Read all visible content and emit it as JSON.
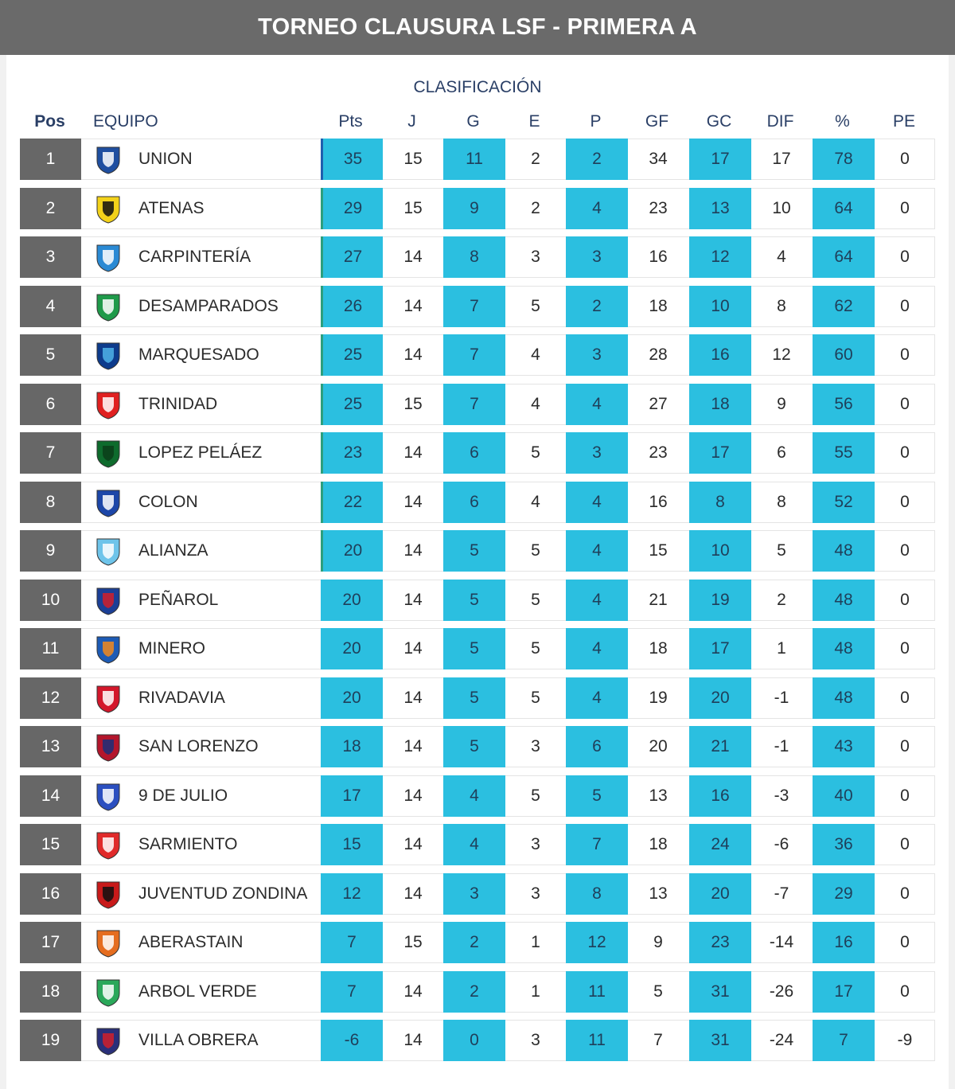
{
  "header": {
    "title": "TORNEO CLAUSURA LSF - PRIMERA A"
  },
  "table": {
    "subtitle": "CLASIFICACIÓN",
    "columns": {
      "pos": "Pos",
      "team": "EQUIPO",
      "pts": "Pts",
      "j": "J",
      "g": "G",
      "e": "E",
      "p": "P",
      "gf": "GF",
      "gc": "GC",
      "dif": "DIF",
      "pct": "%",
      "pe": "PE"
    },
    "highlight_color": "#2bbfe0",
    "rows": [
      {
        "pos": "1",
        "team": "UNION",
        "crest": "union-crest-icon",
        "pts": "35",
        "j": "15",
        "g": "11",
        "e": "2",
        "p": "2",
        "gf": "34",
        "gc": "17",
        "dif": "17",
        "pct": "78",
        "pe": "0"
      },
      {
        "pos": "2",
        "team": "ATENAS",
        "crest": "atenas-crest-icon",
        "pts": "29",
        "j": "15",
        "g": "9",
        "e": "2",
        "p": "4",
        "gf": "23",
        "gc": "13",
        "dif": "10",
        "pct": "64",
        "pe": "0"
      },
      {
        "pos": "3",
        "team": "CARPINTERÍA",
        "crest": "carpinteria-crest-icon",
        "pts": "27",
        "j": "14",
        "g": "8",
        "e": "3",
        "p": "3",
        "gf": "16",
        "gc": "12",
        "dif": "4",
        "pct": "64",
        "pe": "0"
      },
      {
        "pos": "4",
        "team": "DESAMPARADOS",
        "crest": "desamparados-crest-icon",
        "pts": "26",
        "j": "14",
        "g": "7",
        "e": "5",
        "p": "2",
        "gf": "18",
        "gc": "10",
        "dif": "8",
        "pct": "62",
        "pe": "0"
      },
      {
        "pos": "5",
        "team": "MARQUESADO",
        "crest": "marquesado-crest-icon",
        "pts": "25",
        "j": "14",
        "g": "7",
        "e": "4",
        "p": "3",
        "gf": "28",
        "gc": "16",
        "dif": "12",
        "pct": "60",
        "pe": "0"
      },
      {
        "pos": "6",
        "team": "TRINIDAD",
        "crest": "trinidad-crest-icon",
        "pts": "25",
        "j": "15",
        "g": "7",
        "e": "4",
        "p": "4",
        "gf": "27",
        "gc": "18",
        "dif": "9",
        "pct": "56",
        "pe": "0"
      },
      {
        "pos": "7",
        "team": "LOPEZ PELÁEZ",
        "crest": "lopez-pelaez-crest-icon",
        "pts": "23",
        "j": "14",
        "g": "6",
        "e": "5",
        "p": "3",
        "gf": "23",
        "gc": "17",
        "dif": "6",
        "pct": "55",
        "pe": "0"
      },
      {
        "pos": "8",
        "team": "COLON",
        "crest": "colon-crest-icon",
        "pts": "22",
        "j": "14",
        "g": "6",
        "e": "4",
        "p": "4",
        "gf": "16",
        "gc": "8",
        "dif": "8",
        "pct": "52",
        "pe": "0"
      },
      {
        "pos": "9",
        "team": "ALIANZA",
        "crest": "alianza-crest-icon",
        "pts": "20",
        "j": "14",
        "g": "5",
        "e": "5",
        "p": "4",
        "gf": "15",
        "gc": "10",
        "dif": "5",
        "pct": "48",
        "pe": "0"
      },
      {
        "pos": "10",
        "team": "PEÑAROL",
        "crest": "penarol-crest-icon",
        "pts": "20",
        "j": "14",
        "g": "5",
        "e": "5",
        "p": "4",
        "gf": "21",
        "gc": "19",
        "dif": "2",
        "pct": "48",
        "pe": "0"
      },
      {
        "pos": "11",
        "team": "MINERO",
        "crest": "minero-crest-icon",
        "pts": "20",
        "j": "14",
        "g": "5",
        "e": "5",
        "p": "4",
        "gf": "18",
        "gc": "17",
        "dif": "1",
        "pct": "48",
        "pe": "0"
      },
      {
        "pos": "12",
        "team": "RIVADAVIA",
        "crest": "rivadavia-crest-icon",
        "pts": "20",
        "j": "14",
        "g": "5",
        "e": "5",
        "p": "4",
        "gf": "19",
        "gc": "20",
        "dif": "-1",
        "pct": "48",
        "pe": "0"
      },
      {
        "pos": "13",
        "team": "SAN LORENZO",
        "crest": "san-lorenzo-crest-icon",
        "pts": "18",
        "j": "14",
        "g": "5",
        "e": "3",
        "p": "6",
        "gf": "20",
        "gc": "21",
        "dif": "-1",
        "pct": "43",
        "pe": "0"
      },
      {
        "pos": "14",
        "team": "9 DE JULIO",
        "crest": "9-de-julio-crest-icon",
        "pts": "17",
        "j": "14",
        "g": "4",
        "e": "5",
        "p": "5",
        "gf": "13",
        "gc": "16",
        "dif": "-3",
        "pct": "40",
        "pe": "0"
      },
      {
        "pos": "15",
        "team": "SARMIENTO",
        "crest": "sarmiento-crest-icon",
        "pts": "15",
        "j": "14",
        "g": "4",
        "e": "3",
        "p": "7",
        "gf": "18",
        "gc": "24",
        "dif": "-6",
        "pct": "36",
        "pe": "0"
      },
      {
        "pos": "16",
        "team": "JUVENTUD ZONDINA",
        "crest": "juventud-zondina-crest-icon",
        "pts": "12",
        "j": "14",
        "g": "3",
        "e": "3",
        "p": "8",
        "gf": "13",
        "gc": "20",
        "dif": "-7",
        "pct": "29",
        "pe": "0"
      },
      {
        "pos": "17",
        "team": "ABERASTAIN",
        "crest": "aberastain-crest-icon",
        "pts": "7",
        "j": "15",
        "g": "2",
        "e": "1",
        "p": "12",
        "gf": "9",
        "gc": "23",
        "dif": "-14",
        "pct": "16",
        "pe": "0"
      },
      {
        "pos": "18",
        "team": "ARBOL VERDE",
        "crest": "arbol-verde-crest-icon",
        "pts": "7",
        "j": "14",
        "g": "2",
        "e": "1",
        "p": "11",
        "gf": "5",
        "gc": "31",
        "dif": "-26",
        "pct": "17",
        "pe": "0"
      },
      {
        "pos": "19",
        "team": "VILLA OBRERA",
        "crest": "villa-obrera-crest-icon",
        "pts": "-6",
        "j": "14",
        "g": "0",
        "e": "3",
        "p": "11",
        "gf": "7",
        "gc": "31",
        "dif": "-24",
        "pct": "7",
        "pe": "-9"
      }
    ]
  }
}
